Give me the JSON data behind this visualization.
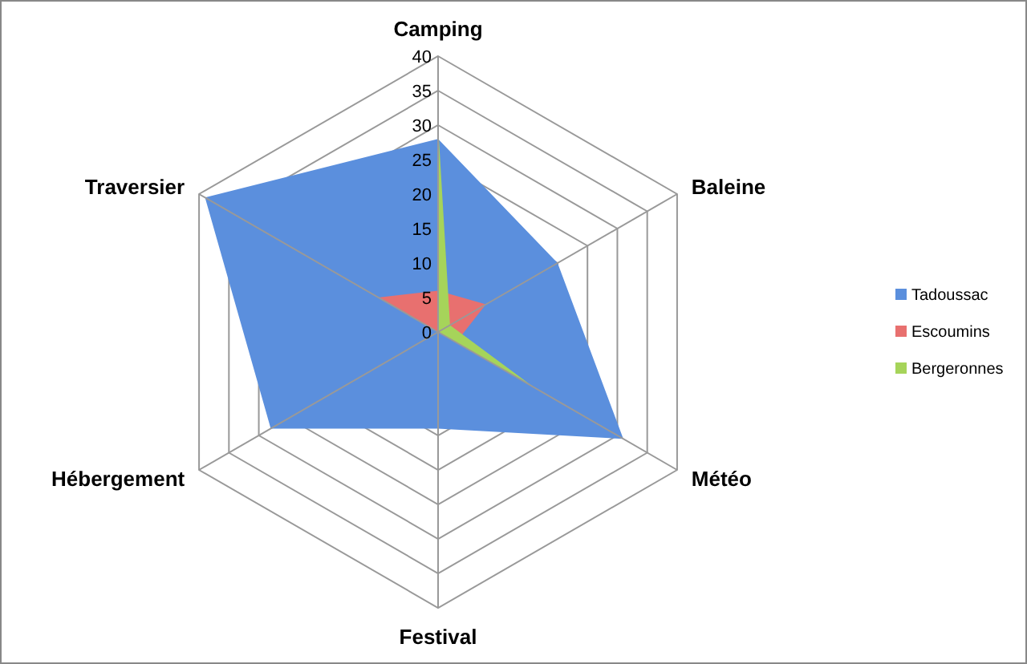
{
  "chart_data": {
    "type": "radar",
    "categories": [
      "Camping",
      "Baleine",
      "Météo",
      "Festival",
      "Hébergement",
      "Traversier"
    ],
    "ylim": [
      0,
      40
    ],
    "yticks": [
      0,
      5,
      10,
      15,
      20,
      25,
      30,
      35,
      40
    ],
    "grid": true,
    "legend": "right",
    "series": [
      {
        "name": "Tadoussac",
        "color": "#5b8fdd",
        "values": [
          28,
          20,
          31,
          14,
          28,
          39
        ]
      },
      {
        "name": "Escoumins",
        "color": "#e8706f",
        "values": [
          6,
          8,
          3,
          0,
          0,
          10
        ]
      },
      {
        "name": "Bergeronnes",
        "color": "#a6d45a",
        "values": [
          30,
          2,
          16,
          0,
          0,
          0
        ]
      }
    ]
  }
}
